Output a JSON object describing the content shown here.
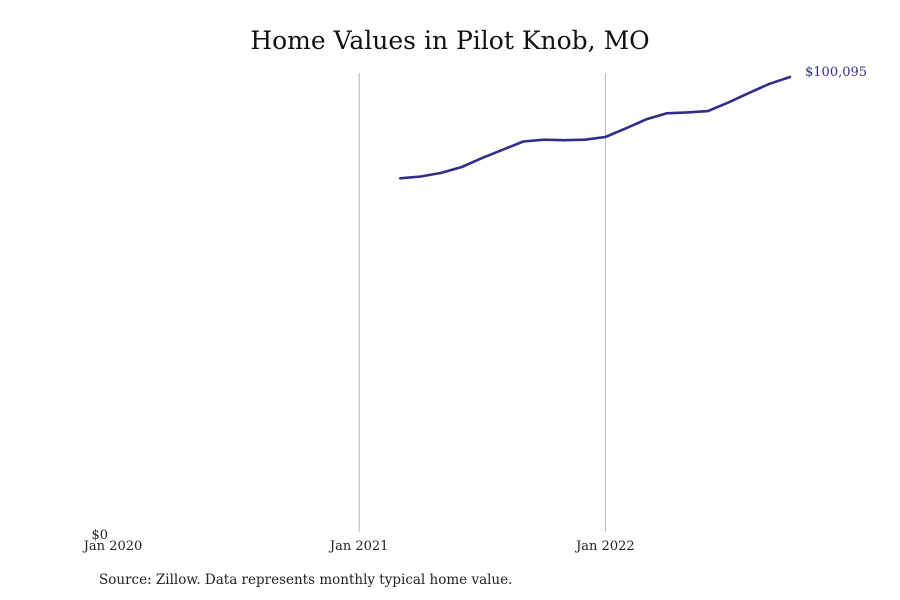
{
  "chart_data": {
    "type": "line",
    "title": "Home Values in Pilot Knob, MO",
    "xlabel": "",
    "ylabel": "",
    "x_ticks": [
      "Jan 2020",
      "Jan 2021",
      "Jan 2022"
    ],
    "y_ticks": [
      "$0"
    ],
    "ylim": [
      0,
      100095
    ],
    "xlim": [
      "2020-01",
      "2022-10"
    ],
    "grid": "vertical lines at year ticks",
    "legend": "none",
    "series": [
      {
        "color": "#2e2e8c",
        "end_label": "$100,095",
        "points": [
          {
            "x": "2021-03",
            "y": 77800
          },
          {
            "x": "2021-04",
            "y": 78200
          },
          {
            "x": "2021-05",
            "y": 79000
          },
          {
            "x": "2021-06",
            "y": 80300
          },
          {
            "x": "2021-07",
            "y": 82300
          },
          {
            "x": "2021-08",
            "y": 84100
          },
          {
            "x": "2021-09",
            "y": 85900
          },
          {
            "x": "2021-10",
            "y": 86300
          },
          {
            "x": "2021-11",
            "y": 86200
          },
          {
            "x": "2021-12",
            "y": 86300
          },
          {
            "x": "2022-01",
            "y": 86900
          },
          {
            "x": "2022-02",
            "y": 88800
          },
          {
            "x": "2022-03",
            "y": 90800
          },
          {
            "x": "2022-04",
            "y": 92100
          },
          {
            "x": "2022-05",
            "y": 92300
          },
          {
            "x": "2022-06",
            "y": 92600
          },
          {
            "x": "2022-07",
            "y": 94500
          },
          {
            "x": "2022-08",
            "y": 96600
          },
          {
            "x": "2022-09",
            "y": 98600
          },
          {
            "x": "2022-10",
            "y": 100095
          }
        ]
      }
    ]
  },
  "source": "Source: Zillow. Data represents monthly typical home value."
}
